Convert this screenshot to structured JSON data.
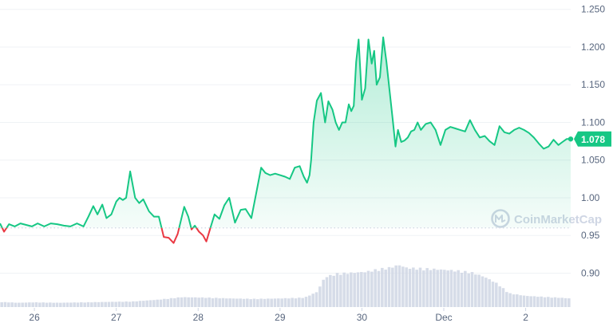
{
  "colors": {
    "up": "#16c784",
    "down": "#ea3943",
    "area_top": "#16c784",
    "volume": "#cfd6e4",
    "badge": "#16c784",
    "baseline": "#cfd6e4",
    "text": "#58667e"
  },
  "watermark": {
    "text": "CoinMarketCap",
    "icon": "coinmarketcap-logo-icon"
  },
  "chart_data": {
    "type": "area",
    "title": "",
    "xlabel": "",
    "ylabel": "",
    "x_ticks": [
      "26",
      "27",
      "28",
      "29",
      "30",
      "Dec",
      "2"
    ],
    "x_tick_positions_day": [
      0,
      1,
      2,
      3,
      4,
      5,
      6
    ],
    "x_range_day": [
      -0.42,
      6.55
    ],
    "y_ticks": [
      "0.90",
      "0.95",
      "1.00",
      "1.050",
      "1.100",
      "1.150",
      "1.200",
      "1.250"
    ],
    "ylim": [
      0.855,
      1.255
    ],
    "baseline_value": 0.96,
    "current_value": 1.078,
    "current_label": "1.078",
    "grid": "horizontal",
    "price": {
      "x_day": [
        -0.42,
        -0.37,
        -0.31,
        -0.24,
        -0.17,
        -0.1,
        -0.03,
        0.04,
        0.12,
        0.2,
        0.28,
        0.36,
        0.44,
        0.52,
        0.6,
        0.66,
        0.72,
        0.77,
        0.83,
        0.88,
        0.94,
        1.0,
        1.04,
        1.08,
        1.12,
        1.17,
        1.23,
        1.28,
        1.33,
        1.4,
        1.46,
        1.52,
        1.58,
        1.64,
        1.7,
        1.75,
        1.79,
        1.83,
        1.88,
        1.92,
        1.96,
        2.01,
        2.06,
        2.1,
        2.15,
        2.2,
        2.26,
        2.32,
        2.38,
        2.45,
        2.52,
        2.58,
        2.65,
        2.72,
        2.77,
        2.82,
        2.88,
        2.94,
        3.0,
        3.06,
        3.12,
        3.18,
        3.24,
        3.29,
        3.33,
        3.36,
        3.38,
        3.41,
        3.45,
        3.5,
        3.55,
        3.59,
        3.64,
        3.68,
        3.72,
        3.76,
        3.8,
        3.84,
        3.87,
        3.9,
        3.93,
        3.96,
        4.0,
        4.04,
        4.08,
        4.12,
        4.15,
        4.18,
        4.22,
        4.26,
        4.3,
        4.34,
        4.38,
        4.41,
        4.44,
        4.48,
        4.52,
        4.56,
        4.6,
        4.64,
        4.68,
        4.72,
        4.78,
        4.84,
        4.9,
        4.96,
        5.02,
        5.08,
        5.14,
        5.2,
        5.26,
        5.32,
        5.38,
        5.44,
        5.5,
        5.56,
        5.62,
        5.68,
        5.74,
        5.8,
        5.86,
        5.92,
        5.98,
        6.04,
        6.1,
        6.16,
        6.22,
        6.28,
        6.34,
        6.4,
        6.45,
        6.5,
        6.55
      ],
      "y": [
        0.966,
        0.955,
        0.965,
        0.962,
        0.966,
        0.964,
        0.962,
        0.966,
        0.962,
        0.966,
        0.965,
        0.963,
        0.962,
        0.966,
        0.962,
        0.975,
        0.989,
        0.978,
        0.991,
        0.973,
        0.978,
        0.995,
        1.0,
        0.997,
        1.0,
        1.035,
        1.0,
        0.993,
        0.998,
        0.982,
        0.975,
        0.975,
        0.948,
        0.947,
        0.94,
        0.952,
        0.97,
        0.988,
        0.975,
        0.958,
        0.963,
        0.955,
        0.95,
        0.942,
        0.96,
        0.978,
        0.972,
        0.99,
        1.0,
        0.967,
        0.984,
        0.985,
        0.973,
        1.012,
        1.04,
        1.033,
        1.03,
        1.032,
        1.03,
        1.028,
        1.025,
        1.04,
        1.042,
        1.028,
        1.02,
        1.03,
        1.05,
        1.1,
        1.129,
        1.139,
        1.1,
        1.128,
        1.117,
        1.1,
        1.09,
        1.1,
        1.1,
        1.124,
        1.115,
        1.122,
        1.18,
        1.21,
        1.13,
        1.145,
        1.21,
        1.178,
        1.195,
        1.15,
        1.16,
        1.213,
        1.18,
        1.14,
        1.1,
        1.068,
        1.09,
        1.074,
        1.076,
        1.08,
        1.088,
        1.09,
        1.1,
        1.09,
        1.098,
        1.1,
        1.09,
        1.07,
        1.09,
        1.094,
        1.092,
        1.09,
        1.088,
        1.103,
        1.09,
        1.08,
        1.082,
        1.075,
        1.07,
        1.095,
        1.087,
        1.085,
        1.09,
        1.093,
        1.09,
        1.086,
        1.08,
        1.072,
        1.065,
        1.068,
        1.077,
        1.07,
        1.074,
        1.078,
        1.078
      ]
    },
    "volume": {
      "x_day": [
        -0.42,
        -0.2,
        0.0,
        0.3,
        0.6,
        0.9,
        1.2,
        1.5,
        1.8,
        2.1,
        2.4,
        2.7,
        3.0,
        3.3,
        3.45,
        3.55,
        3.7,
        3.9,
        4.05,
        4.2,
        4.35,
        4.45,
        4.55,
        4.7,
        4.9,
        5.05,
        5.2,
        5.35,
        5.5,
        5.65,
        5.8,
        6.0,
        6.2,
        6.4,
        6.55
      ],
      "level": [
        0.12,
        0.1,
        0.11,
        0.1,
        0.11,
        0.12,
        0.13,
        0.17,
        0.23,
        0.22,
        0.2,
        0.19,
        0.2,
        0.22,
        0.35,
        0.7,
        0.78,
        0.8,
        0.82,
        0.88,
        0.92,
        0.98,
        0.91,
        0.9,
        0.88,
        0.86,
        0.84,
        0.8,
        0.7,
        0.55,
        0.32,
        0.26,
        0.24,
        0.22,
        0.2
      ]
    }
  }
}
